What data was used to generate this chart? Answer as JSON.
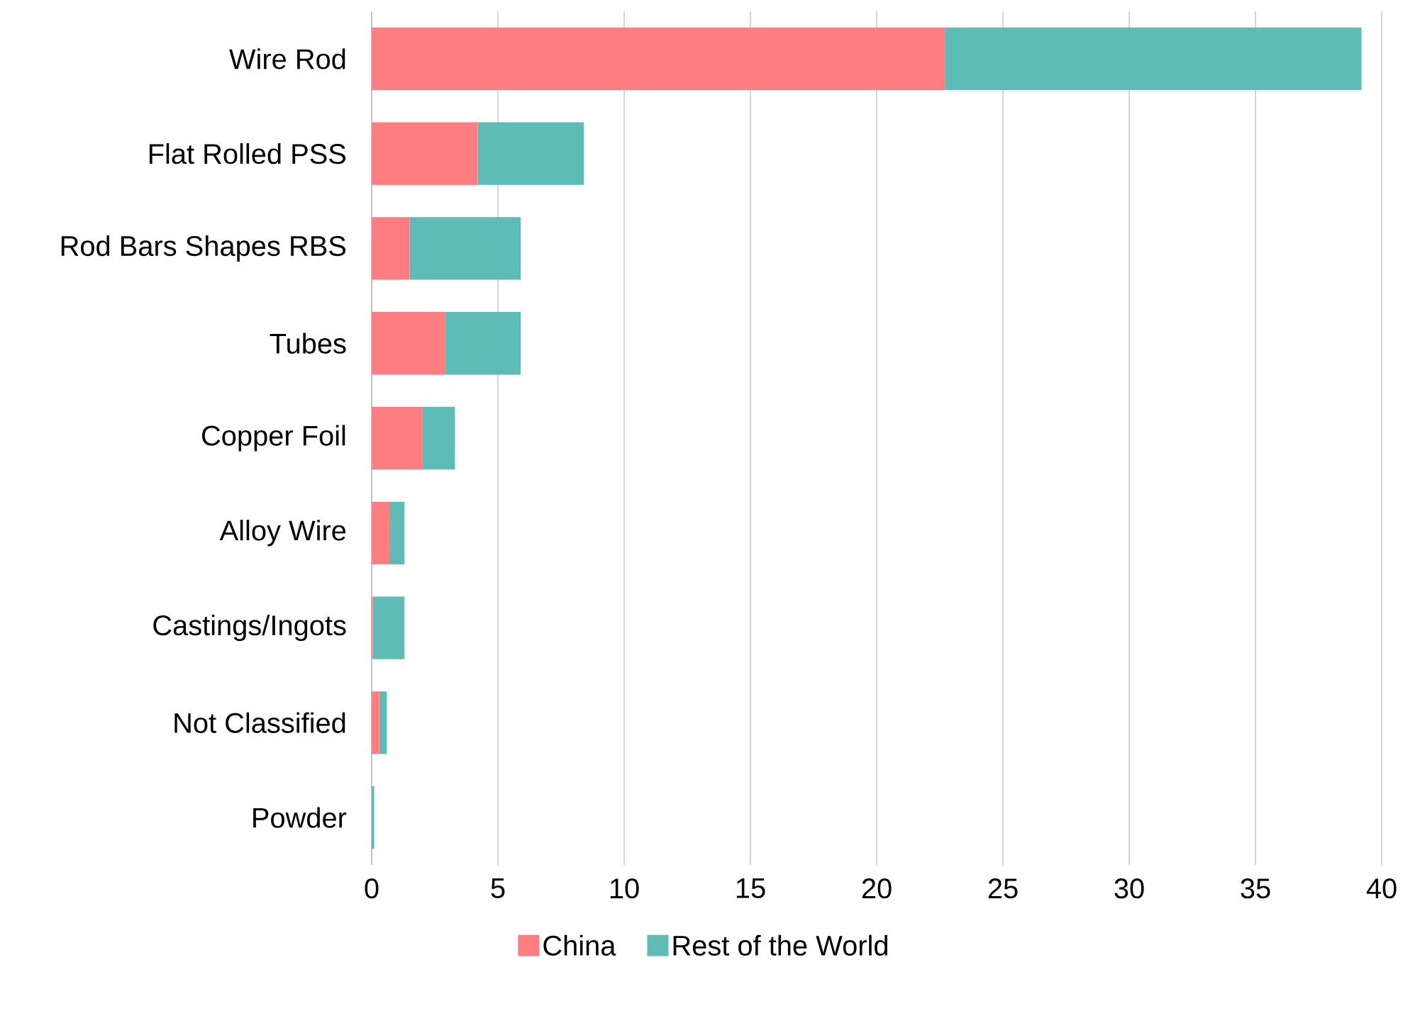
{
  "chart_data": {
    "type": "bar",
    "orientation": "horizontal",
    "stacked": true,
    "categories": [
      "Wire Rod",
      "Flat Rolled PSS",
      "Rod Bars Shapes RBS",
      "Tubes",
      "Copper Foil",
      "Alloy Wire",
      "Castings/Ingots",
      "Not Classified",
      "Powder"
    ],
    "series": [
      {
        "name": "China",
        "color": "#ff7c80",
        "values": [
          22.7,
          4.2,
          1.5,
          2.9,
          2.0,
          0.7,
          0.05,
          0.3,
          0.0
        ]
      },
      {
        "name": "Rest of the World",
        "color": "#5dbcb6",
        "values": [
          16.5,
          4.2,
          4.4,
          3.0,
          1.3,
          0.6,
          1.25,
          0.3,
          0.1
        ]
      }
    ],
    "xlim": [
      0,
      40
    ],
    "xticks": [
      0,
      5,
      10,
      15,
      20,
      25,
      30,
      35,
      40
    ],
    "grid": "x",
    "legend": "bottom"
  }
}
